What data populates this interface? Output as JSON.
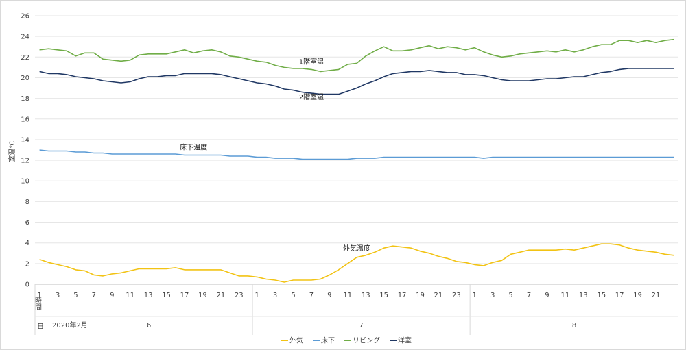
{
  "chart_data": {
    "type": "line",
    "ylabel": "室温℃",
    "ylim": [
      0,
      26
    ],
    "yticks": [
      0,
      2,
      4,
      6,
      8,
      10,
      12,
      14,
      16,
      18,
      20,
      22,
      24,
      26
    ],
    "grid": true,
    "legend_position": "bottom",
    "axis_header": {
      "hour": "時間",
      "day": "日"
    },
    "date_label": "2020年2月",
    "days": [
      {
        "label": "6",
        "hour_labels": [
          "1",
          "3",
          "5",
          "7",
          "9",
          "11",
          "13",
          "15",
          "17",
          "19",
          "21",
          "23"
        ]
      },
      {
        "label": "7",
        "hour_labels": [
          "1",
          "3",
          "5",
          "7",
          "9",
          "11",
          "13",
          "15",
          "17",
          "19",
          "21",
          "23"
        ]
      },
      {
        "label": "8",
        "hour_labels": [
          "1",
          "3",
          "5",
          "7",
          "9",
          "11",
          "13",
          "15",
          "17",
          "19",
          "21"
        ]
      }
    ],
    "series": [
      {
        "name": "外気",
        "color": "#f2c314",
        "annotation": "外気温度",
        "values": [
          2.4,
          2.1,
          1.9,
          1.7,
          1.4,
          1.3,
          0.9,
          0.8,
          1.0,
          1.1,
          1.3,
          1.5,
          1.5,
          1.5,
          1.5,
          1.6,
          1.4,
          1.4,
          1.4,
          1.4,
          1.4,
          1.1,
          0.8,
          0.8,
          0.7,
          0.5,
          0.4,
          0.2,
          0.4,
          0.4,
          0.4,
          0.5,
          0.9,
          1.4,
          2.0,
          2.6,
          2.8,
          3.1,
          3.5,
          3.7,
          3.6,
          3.5,
          3.2,
          3.0,
          2.7,
          2.5,
          2.2,
          2.1,
          1.9,
          1.8,
          2.1,
          2.3,
          2.9,
          3.1,
          3.3,
          3.3,
          3.3,
          3.3,
          3.4,
          3.3,
          3.5,
          3.7,
          3.9,
          3.9,
          3.8,
          3.5,
          3.3,
          3.2,
          3.1,
          2.9,
          2.8
        ]
      },
      {
        "name": "床下",
        "color": "#5b9bd5",
        "annotation": "床下温度",
        "values": [
          13.0,
          12.9,
          12.9,
          12.9,
          12.8,
          12.8,
          12.7,
          12.7,
          12.6,
          12.6,
          12.6,
          12.6,
          12.6,
          12.6,
          12.6,
          12.6,
          12.5,
          12.5,
          12.5,
          12.5,
          12.5,
          12.4,
          12.4,
          12.4,
          12.3,
          12.3,
          12.2,
          12.2,
          12.2,
          12.1,
          12.1,
          12.1,
          12.1,
          12.1,
          12.1,
          12.2,
          12.2,
          12.2,
          12.3,
          12.3,
          12.3,
          12.3,
          12.3,
          12.3,
          12.3,
          12.3,
          12.3,
          12.3,
          12.3,
          12.2,
          12.3,
          12.3,
          12.3,
          12.3,
          12.3,
          12.3,
          12.3,
          12.3,
          12.3,
          12.3,
          12.3,
          12.3,
          12.3,
          12.3,
          12.3,
          12.3,
          12.3,
          12.3,
          12.3,
          12.3,
          12.3
        ]
      },
      {
        "name": "リビング",
        "color": "#70ad47",
        "annotation": "1階室温",
        "values": [
          22.7,
          22.8,
          22.7,
          22.6,
          22.1,
          22.4,
          22.4,
          21.8,
          21.7,
          21.6,
          21.7,
          22.2,
          22.3,
          22.3,
          22.3,
          22.5,
          22.7,
          22.4,
          22.6,
          22.7,
          22.5,
          22.1,
          22.0,
          21.8,
          21.6,
          21.5,
          21.2,
          21.0,
          20.9,
          20.9,
          20.8,
          20.6,
          20.7,
          20.8,
          21.3,
          21.4,
          22.1,
          22.6,
          23.0,
          22.6,
          22.6,
          22.7,
          22.9,
          23.1,
          22.8,
          23.0,
          22.9,
          22.7,
          22.9,
          22.5,
          22.2,
          22.0,
          22.1,
          22.3,
          22.4,
          22.5,
          22.6,
          22.5,
          22.7,
          22.5,
          22.7,
          23.0,
          23.2,
          23.2,
          23.6,
          23.6,
          23.4,
          23.6,
          23.4,
          23.6,
          23.7
        ]
      },
      {
        "name": "洋室",
        "color": "#203864",
        "annotation": "2階室温",
        "values": [
          20.6,
          20.4,
          20.4,
          20.3,
          20.1,
          20.0,
          19.9,
          19.7,
          19.6,
          19.5,
          19.6,
          19.9,
          20.1,
          20.1,
          20.2,
          20.2,
          20.4,
          20.4,
          20.4,
          20.4,
          20.3,
          20.1,
          19.9,
          19.7,
          19.5,
          19.4,
          19.2,
          18.9,
          18.8,
          18.6,
          18.5,
          18.4,
          18.4,
          18.4,
          18.7,
          19.0,
          19.4,
          19.7,
          20.1,
          20.4,
          20.5,
          20.6,
          20.6,
          20.7,
          20.6,
          20.5,
          20.5,
          20.3,
          20.3,
          20.2,
          20.0,
          19.8,
          19.7,
          19.7,
          19.7,
          19.8,
          19.9,
          19.9,
          20.0,
          20.1,
          20.1,
          20.3,
          20.5,
          20.6,
          20.8,
          20.9,
          20.9,
          20.9,
          20.9,
          20.9,
          20.9
        ]
      }
    ]
  }
}
